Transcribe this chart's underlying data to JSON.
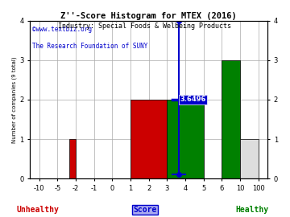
{
  "title": "Z''-Score Histogram for MTEX (2016)",
  "subtitle": "Industry: Special Foods & Welbeing Products",
  "watermark1": "©www.textbiz.org",
  "watermark2": "The Research Foundation of SUNY",
  "xtick_values": [
    -10,
    -5,
    -2,
    -1,
    0,
    1,
    2,
    3,
    4,
    5,
    6,
    10,
    100
  ],
  "xtick_labels": [
    "-10",
    "-5",
    "-2",
    "-1",
    "0",
    "1",
    "2",
    "3",
    "4",
    "5",
    "6",
    "10",
    "100"
  ],
  "bars": [
    {
      "from_val": -3,
      "to_val": -2,
      "height": 1,
      "color": "#cc0000"
    },
    {
      "from_val": 1,
      "to_val": 3,
      "height": 2,
      "color": "#cc0000"
    },
    {
      "from_val": 3,
      "to_val": 5,
      "height": 2,
      "color": "#008000"
    },
    {
      "from_val": 6,
      "to_val": 10,
      "height": 3,
      "color": "#008000"
    },
    {
      "from_val": 10,
      "to_val": 100,
      "height": 1,
      "color": "#dddddd"
    }
  ],
  "errorbar_value": 3.6496,
  "errorbar_ymid": 2.0,
  "errorbar_ylow": 0.1,
  "errorbar_yhigh": 4.0,
  "errorbar_label": "3.6496",
  "errorbar_color": "#0000cc",
  "ylim": [
    0,
    4
  ],
  "yticks": [
    0,
    1,
    2,
    3,
    4
  ],
  "ylabel": "Number of companies (9 total)",
  "xlabel_score": "Score",
  "xlabel_unhealthy": "Unhealthy",
  "xlabel_healthy": "Healthy",
  "score_color": "#0000cc",
  "unhealthy_color": "#cc0000",
  "healthy_color": "#008000",
  "title_color": "#000000",
  "subtitle_color": "#000000",
  "watermark1_color": "#0000cc",
  "watermark2_color": "#0000cc",
  "bg_color": "#ffffff",
  "grid_color": "#aaaaaa"
}
